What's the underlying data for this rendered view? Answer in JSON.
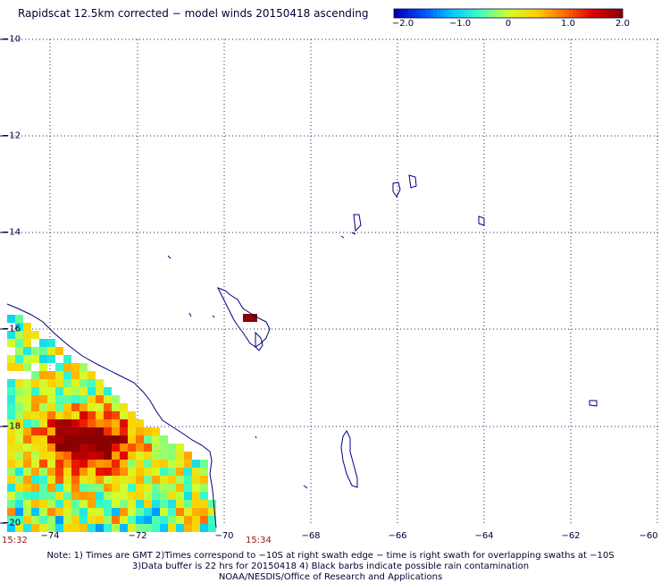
{
  "title": "Rapidscat 12.5km corrected − model winds 20150418 ascending",
  "colorbar": {
    "colors": [
      "#0000b4",
      "#0050ff",
      "#00c8ff",
      "#40ffc0",
      "#d0ff30",
      "#ffd000",
      "#ff6a00",
      "#e00000",
      "#8b0000"
    ],
    "ticks": [
      "−2.0",
      "−1.0",
      "0",
      "1.0",
      "2.0"
    ],
    "range": [
      -2.0,
      2.0
    ]
  },
  "map": {
    "lat_range": [
      -20,
      -10
    ],
    "lon_range": [
      -75,
      -60
    ],
    "lat_labels": [
      "−10",
      "−12",
      "−14",
      "−16",
      "−18",
      "−20"
    ],
    "lon_labels": [
      "−74",
      "−72",
      "−70",
      "−68",
      "−66",
      "−64",
      "−62",
      "−60"
    ],
    "time_labels": [
      "15:32",
      "15:34"
    ],
    "coast_color": "#000080",
    "grid": "dotted",
    "swath_note": "wind difference cells on lower-left swath near Peruvian coast"
  },
  "notes": [
    "Note: 1) Times are GMT 2)Times correspond to −10S at right swath edge − time is right swath for overlapping swaths at −10S",
    "3)Data buffer is 22 hrs for 20150418 4) Black barbs indicate possible rain contamination",
    "NOAA/NESDIS/Office of Research and Applications"
  ]
}
